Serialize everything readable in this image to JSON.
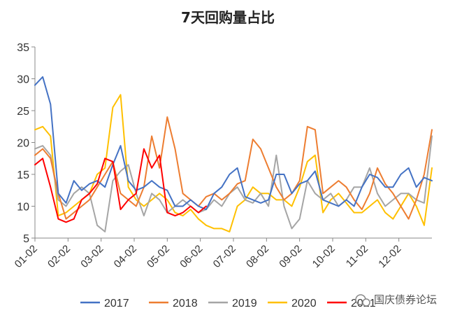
{
  "chart_data": {
    "type": "line",
    "title": "7天回购量占比",
    "ylim": [
      5,
      35
    ],
    "yticks": [
      "5",
      "10",
      "15",
      "20",
      "25",
      "30",
      "35"
    ],
    "xticks": [
      "01-02",
      "02-02",
      "03-02",
      "04-02",
      "05-02",
      "06-02",
      "07-02",
      "08-02",
      "09-02",
      "10-02",
      "11-02",
      "12-02"
    ],
    "grid": false,
    "legend_position": "bottom",
    "series": [
      {
        "name": "2017",
        "color": "#4472C4",
        "x": [
          1,
          2,
          3,
          4,
          5,
          6,
          7,
          8,
          9,
          10,
          11,
          12,
          13,
          14,
          15,
          16,
          17,
          18,
          19,
          20,
          21,
          22,
          23,
          24,
          25,
          26,
          27,
          28,
          29,
          30,
          31,
          32,
          33,
          34,
          35,
          36,
          37,
          38,
          39,
          40,
          41,
          42,
          43,
          44,
          45,
          46,
          47,
          48,
          49,
          50,
          51,
          52
        ],
        "y": [
          29,
          30.3,
          26,
          12,
          10.5,
          14,
          12.5,
          13.5,
          14,
          13,
          16.5,
          19.5,
          14,
          12.5,
          13,
          14,
          13,
          12.5,
          10,
          10,
          11,
          10,
          9.5,
          12,
          13,
          15,
          16,
          11.5,
          11,
          10.5,
          11,
          15,
          15,
          12,
          13.5,
          14,
          15.5,
          11,
          10.5,
          10,
          11,
          10,
          13,
          15,
          14.5,
          13,
          13,
          15,
          16,
          13,
          14.5,
          14
        ]
      },
      {
        "name": "2018",
        "color": "#ED7D31",
        "x": [
          1,
          2,
          3,
          4,
          5,
          6,
          7,
          8,
          9,
          10,
          11,
          12,
          13,
          14,
          15,
          16,
          17,
          18,
          19,
          20,
          21,
          22,
          23,
          24,
          25,
          26,
          27,
          28,
          29,
          30,
          31,
          32,
          33,
          34,
          35,
          36,
          37,
          38,
          39,
          40,
          41,
          42,
          43,
          44,
          45,
          46,
          47,
          48,
          49,
          50,
          51,
          52
        ],
        "y": [
          18,
          19,
          17.5,
          12,
          8,
          9,
          10,
          11,
          13,
          15,
          17,
          12,
          11,
          10,
          13,
          21,
          16,
          24,
          19,
          12,
          11,
          10,
          11.5,
          12,
          11,
          12,
          13.5,
          14,
          20.5,
          19,
          16,
          13,
          11,
          12,
          14,
          22.5,
          22,
          12,
          13,
          14,
          13,
          11,
          9.5,
          12,
          16,
          13.5,
          12,
          10,
          8,
          11,
          15,
          22
        ]
      },
      {
        "name": "2019",
        "color": "#A5A5A5",
        "x": [
          1,
          2,
          3,
          4,
          5,
          6,
          7,
          8,
          9,
          10,
          11,
          12,
          13,
          14,
          15,
          16,
          17,
          18,
          19,
          20,
          21,
          22,
          23,
          24,
          25,
          26,
          27,
          28,
          29,
          30,
          31,
          32,
          33,
          34,
          35,
          36,
          37,
          38,
          39,
          40,
          41,
          42,
          43,
          44,
          45,
          46,
          47,
          48,
          49,
          50,
          51,
          52
        ],
        "y": [
          19,
          19.5,
          18,
          11,
          10,
          12,
          13,
          12,
          7,
          6,
          14,
          15.5,
          16.5,
          12,
          8.5,
          12,
          11,
          9,
          10,
          11,
          10,
          9,
          9.5,
          11,
          10,
          12,
          13,
          11,
          10.5,
          12,
          10,
          18,
          10,
          6.5,
          8,
          14,
          12,
          11,
          12,
          10,
          11,
          13,
          13,
          16,
          12,
          10,
          11,
          12,
          12,
          11,
          10.5,
          21
        ]
      },
      {
        "name": "2020",
        "color": "#FFC000",
        "x": [
          1,
          2,
          3,
          4,
          5,
          6,
          7,
          8,
          9,
          10,
          11,
          12,
          13,
          14,
          15,
          16,
          17,
          18,
          19,
          20,
          21,
          22,
          23,
          24,
          25,
          26,
          27,
          28,
          29,
          30,
          31,
          32,
          33,
          34,
          35,
          36,
          37,
          38,
          39,
          40,
          41,
          42,
          43,
          44,
          45,
          46,
          47,
          48,
          49,
          50,
          51,
          52
        ],
        "y": [
          22,
          22.5,
          21,
          8.5,
          9,
          10,
          11,
          12,
          15,
          16,
          25.5,
          27.5,
          13,
          11,
          10,
          11,
          12,
          11,
          9,
          8.5,
          9.5,
          8,
          7,
          6.5,
          6.5,
          6,
          10,
          11,
          13,
          12,
          12,
          11,
          11,
          10,
          13,
          17,
          18,
          9,
          11,
          12,
          10.5,
          9,
          9,
          10,
          11,
          9,
          8,
          10,
          12,
          10,
          7,
          16
        ]
      },
      {
        "name": "2021",
        "color": "#FF0000",
        "x": [
          1,
          2,
          3,
          4,
          5,
          6,
          7,
          8,
          9,
          10,
          11,
          12,
          13,
          14,
          15,
          16,
          17,
          18,
          19,
          20,
          21,
          22,
          23
        ],
        "y": [
          16.5,
          17.5,
          13,
          8,
          7.5,
          8,
          11,
          12,
          13.5,
          17.5,
          17,
          9.5,
          11,
          12,
          19,
          16,
          18,
          9,
          8.5,
          9,
          10,
          9,
          10
        ]
      }
    ]
  },
  "watermark": {
    "text": "国庆债券论坛"
  }
}
